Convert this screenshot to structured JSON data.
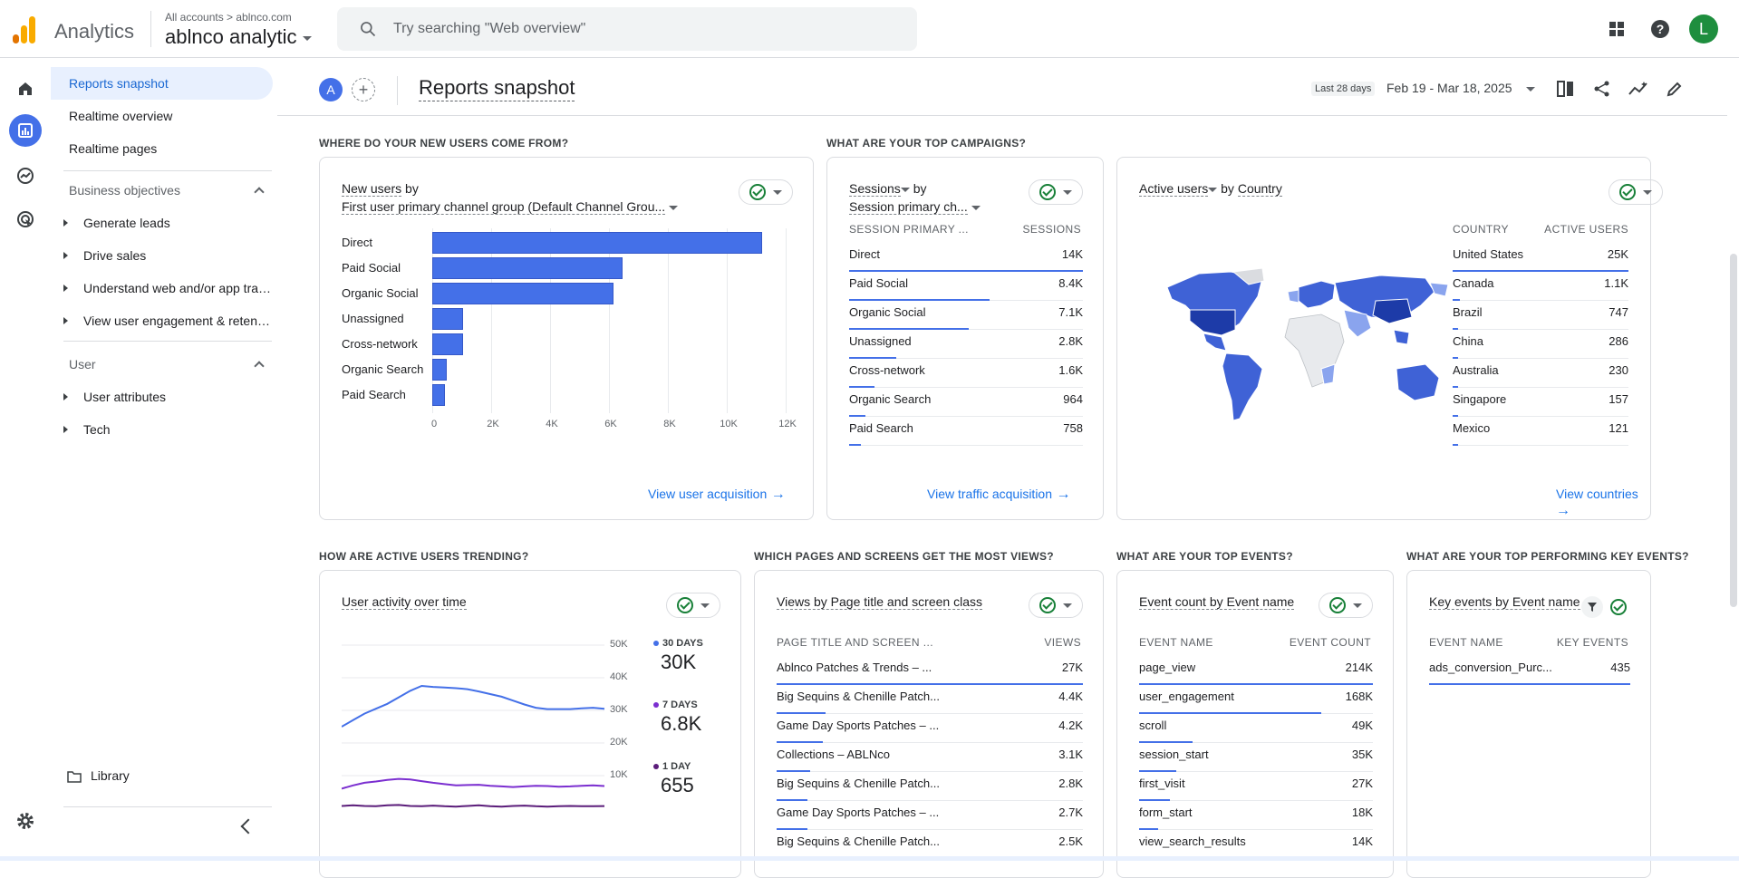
{
  "topbar": {
    "app_name": "Analytics",
    "account_path": "All accounts > ablnco.com",
    "account_name": "ablnco analytic",
    "search_placeholder": "Try searching \"Web overview\"",
    "avatar_letter": "L"
  },
  "nav": {
    "items": [
      "Reports snapshot",
      "Realtime overview",
      "Realtime pages"
    ],
    "business_section": "Business objectives",
    "business_items": [
      "Generate leads",
      "Drive sales",
      "Understand web and/or app traffic",
      "View user engagement & retention"
    ],
    "user_section": "User",
    "user_items": [
      "User attributes",
      "Tech"
    ],
    "library": "Library"
  },
  "header": {
    "avatar_letter": "A",
    "plus": "+",
    "title": "Reports snapshot",
    "date_label": "Last 28 days",
    "date_range": "Feb 19 - Mar 18, 2025"
  },
  "sections": {
    "new_users": "WHERE DO YOUR NEW USERS COME FROM?",
    "campaigns": "WHAT ARE YOUR TOP CAMPAIGNS?",
    "trending": "HOW ARE ACTIVE USERS TRENDING?",
    "pages": "WHICH PAGES AND SCREENS GET THE MOST VIEWS?",
    "events": "WHAT ARE YOUR TOP EVENTS?",
    "key_events": "WHAT ARE YOUR TOP PERFORMING KEY EVENTS?"
  },
  "new_users_card": {
    "title_a": "New users",
    "title_b": " by",
    "subtitle": "First user primary channel group (Default Channel Grou...",
    "link": "View user acquisition",
    "chart_data": {
      "type": "bar",
      "orientation": "horizontal",
      "categories": [
        "Direct",
        "Paid Social",
        "Organic Social",
        "Unassigned",
        "Cross-network",
        "Organic Search",
        "Paid Search"
      ],
      "values": [
        11200,
        6450,
        6150,
        1050,
        1050,
        480,
        420
      ],
      "xlim": [
        0,
        12000
      ],
      "ticks": [
        "0",
        "2K",
        "4K",
        "6K",
        "8K",
        "10K",
        "12K"
      ],
      "tick_values": [
        0,
        2000,
        4000,
        6000,
        8000,
        10000,
        12000
      ],
      "color": "#4470e8"
    }
  },
  "sessions_card": {
    "title_a": "Sessions",
    "title_b": " by",
    "subtitle": "Session primary ch...",
    "col1": "SESSION PRIMARY ...",
    "col2": "SESSIONS",
    "rows": [
      {
        "label": "Direct",
        "value": "14K",
        "share": 1.0
      },
      {
        "label": "Paid Social",
        "value": "8.4K",
        "share": 0.6
      },
      {
        "label": "Organic Social",
        "value": "7.1K",
        "share": 0.51
      },
      {
        "label": "Unassigned",
        "value": "2.8K",
        "share": 0.2
      },
      {
        "label": "Cross-network",
        "value": "1.6K",
        "share": 0.11
      },
      {
        "label": "Organic Search",
        "value": "964",
        "share": 0.07
      },
      {
        "label": "Paid Search",
        "value": "758",
        "share": 0.05
      }
    ],
    "link": "View traffic acquisition"
  },
  "country_card": {
    "title_a": "Active users",
    "title_b": " by ",
    "title_c": "Country",
    "col1": "COUNTRY",
    "col2": "ACTIVE USERS",
    "rows": [
      {
        "label": "United States",
        "value": "25K",
        "share": 1.0
      },
      {
        "label": "Canada",
        "value": "1.1K",
        "share": 0.04
      },
      {
        "label": "Brazil",
        "value": "747",
        "share": 0.03
      },
      {
        "label": "China",
        "value": "286",
        "share": 0.012
      },
      {
        "label": "Australia",
        "value": "230",
        "share": 0.01
      },
      {
        "label": "Singapore",
        "value": "157",
        "share": 0.006
      },
      {
        "label": "Mexico",
        "value": "121",
        "share": 0.005
      }
    ],
    "link": "View countries"
  },
  "activity_card": {
    "title": "User activity over time",
    "legend": [
      {
        "label": "30 DAYS",
        "value": "30K",
        "color": "#4470e8"
      },
      {
        "label": "7 DAYS",
        "value": "6.8K",
        "color": "#7b2fd0"
      },
      {
        "label": "1 DAY",
        "value": "655",
        "color": "#5b1d7a"
      }
    ],
    "y_ticks": [
      "50K",
      "40K",
      "30K",
      "20K",
      "10K"
    ],
    "chart_data": {
      "type": "line",
      "ylim": [
        0,
        50000
      ],
      "y_tick_values": [
        50000,
        40000,
        30000,
        20000,
        10000
      ],
      "series": [
        {
          "color": "#4470e8",
          "values": [
            25000,
            27000,
            29000,
            30500,
            32000,
            34000,
            36000,
            37500,
            37200,
            37000,
            36800,
            36500,
            35800,
            35000,
            34200,
            33000,
            31800,
            30800,
            30400,
            30400,
            30400,
            30600,
            30800,
            30500
          ]
        },
        {
          "color": "#7b2fd0",
          "values": [
            6000,
            7000,
            7800,
            8200,
            8700,
            9000,
            8800,
            8300,
            7800,
            7400,
            7000,
            7100,
            7200,
            6900,
            6700,
            6500,
            6700,
            6900,
            6800,
            6600,
            6700,
            6900,
            7000,
            6800
          ]
        },
        {
          "color": "#5b1d7a",
          "values": [
            700,
            900,
            700,
            600,
            900,
            1000,
            700,
            600,
            800,
            600,
            500,
            700,
            900,
            600,
            500,
            700,
            800,
            600,
            500,
            650,
            700,
            600,
            650,
            655
          ]
        }
      ]
    }
  },
  "views_card": {
    "title": "Views by Page title and screen class",
    "col1": "PAGE TITLE AND SCREEN ...",
    "col2": "VIEWS",
    "rows": [
      {
        "label": "Ablnco Patches & Trends – ...",
        "value": "27K",
        "share": 1.0
      },
      {
        "label": "Big Sequins & Chenille Patch...",
        "value": "4.4K",
        "share": 0.16
      },
      {
        "label": "Game Day Sports Patches – ...",
        "value": "4.2K",
        "share": 0.15
      },
      {
        "label": "Collections – ABLNco",
        "value": "3.1K",
        "share": 0.11
      },
      {
        "label": "Big Sequins & Chenille Patch...",
        "value": "2.8K",
        "share": 0.1
      },
      {
        "label": "Game Day Sports Patches – ...",
        "value": "2.7K",
        "share": 0.1
      },
      {
        "label": "Big Sequins & Chenille Patch...",
        "value": "2.5K",
        "share": 0.09
      }
    ]
  },
  "events_card": {
    "title": "Event count by Event name",
    "col1": "EVENT NAME",
    "col2": "EVENT COUNT",
    "rows": [
      {
        "label": "page_view",
        "value": "214K",
        "share": 1.0
      },
      {
        "label": "user_engagement",
        "value": "168K",
        "share": 0.78
      },
      {
        "label": "scroll",
        "value": "49K",
        "share": 0.23
      },
      {
        "label": "session_start",
        "value": "35K",
        "share": 0.16
      },
      {
        "label": "first_visit",
        "value": "27K",
        "share": 0.13
      },
      {
        "label": "form_start",
        "value": "18K",
        "share": 0.08
      },
      {
        "label": "view_search_results",
        "value": "14K",
        "share": 0.065
      }
    ]
  },
  "key_events_card": {
    "title": "Key events by Event name",
    "col1": "EVENT NAME",
    "col2": "KEY EVENTS",
    "rows": [
      {
        "label": "ads_conversion_Purc...",
        "value": "435",
        "share": 1.0
      }
    ]
  }
}
